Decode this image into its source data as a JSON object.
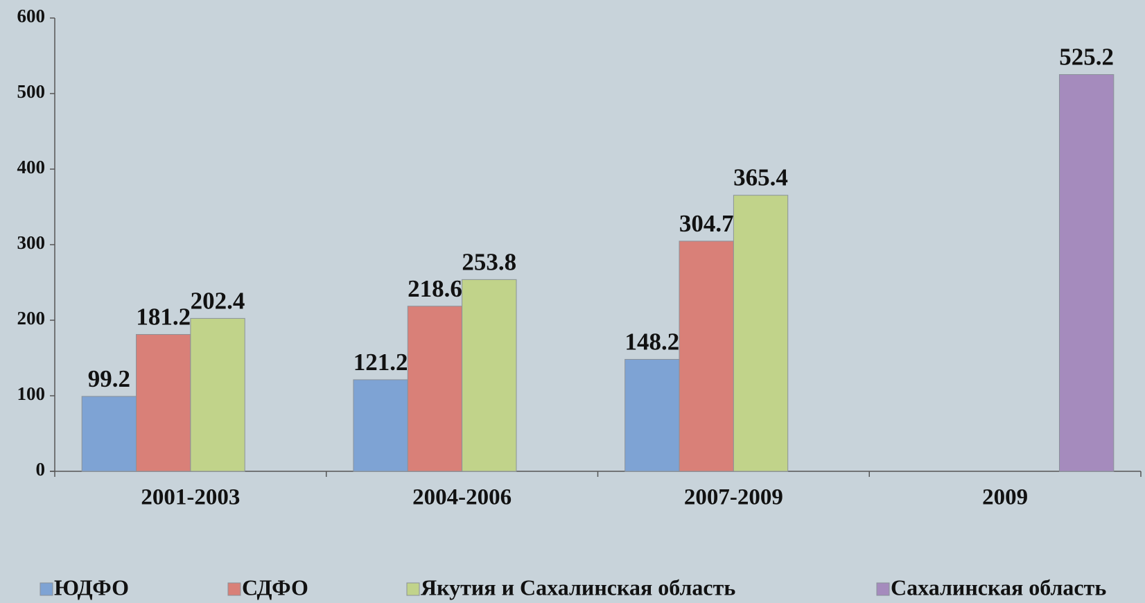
{
  "chart_data": {
    "type": "bar",
    "categories": [
      "2001-2003",
      "2004-2006",
      "2007-2009",
      "2009"
    ],
    "series": [
      {
        "name": "ЮДФО",
        "color": "#7ea3d4",
        "values": [
          99.2,
          121.2,
          148.2,
          null
        ]
      },
      {
        "name": "СДФО",
        "color": "#d98078",
        "values": [
          181.2,
          218.6,
          304.7,
          null
        ]
      },
      {
        "name": "Якутия и Сахалинская область",
        "color": "#c1d38a",
        "values": [
          202.4,
          253.8,
          365.4,
          null
        ]
      },
      {
        "name": "Сахалинская область",
        "color": "#a58bbd",
        "values": [
          null,
          null,
          null,
          525.2
        ]
      }
    ],
    "ylim": [
      0,
      600
    ],
    "yticks": [
      0,
      100,
      200,
      300,
      400,
      500,
      600
    ],
    "grid": false,
    "legend": "bottom"
  }
}
